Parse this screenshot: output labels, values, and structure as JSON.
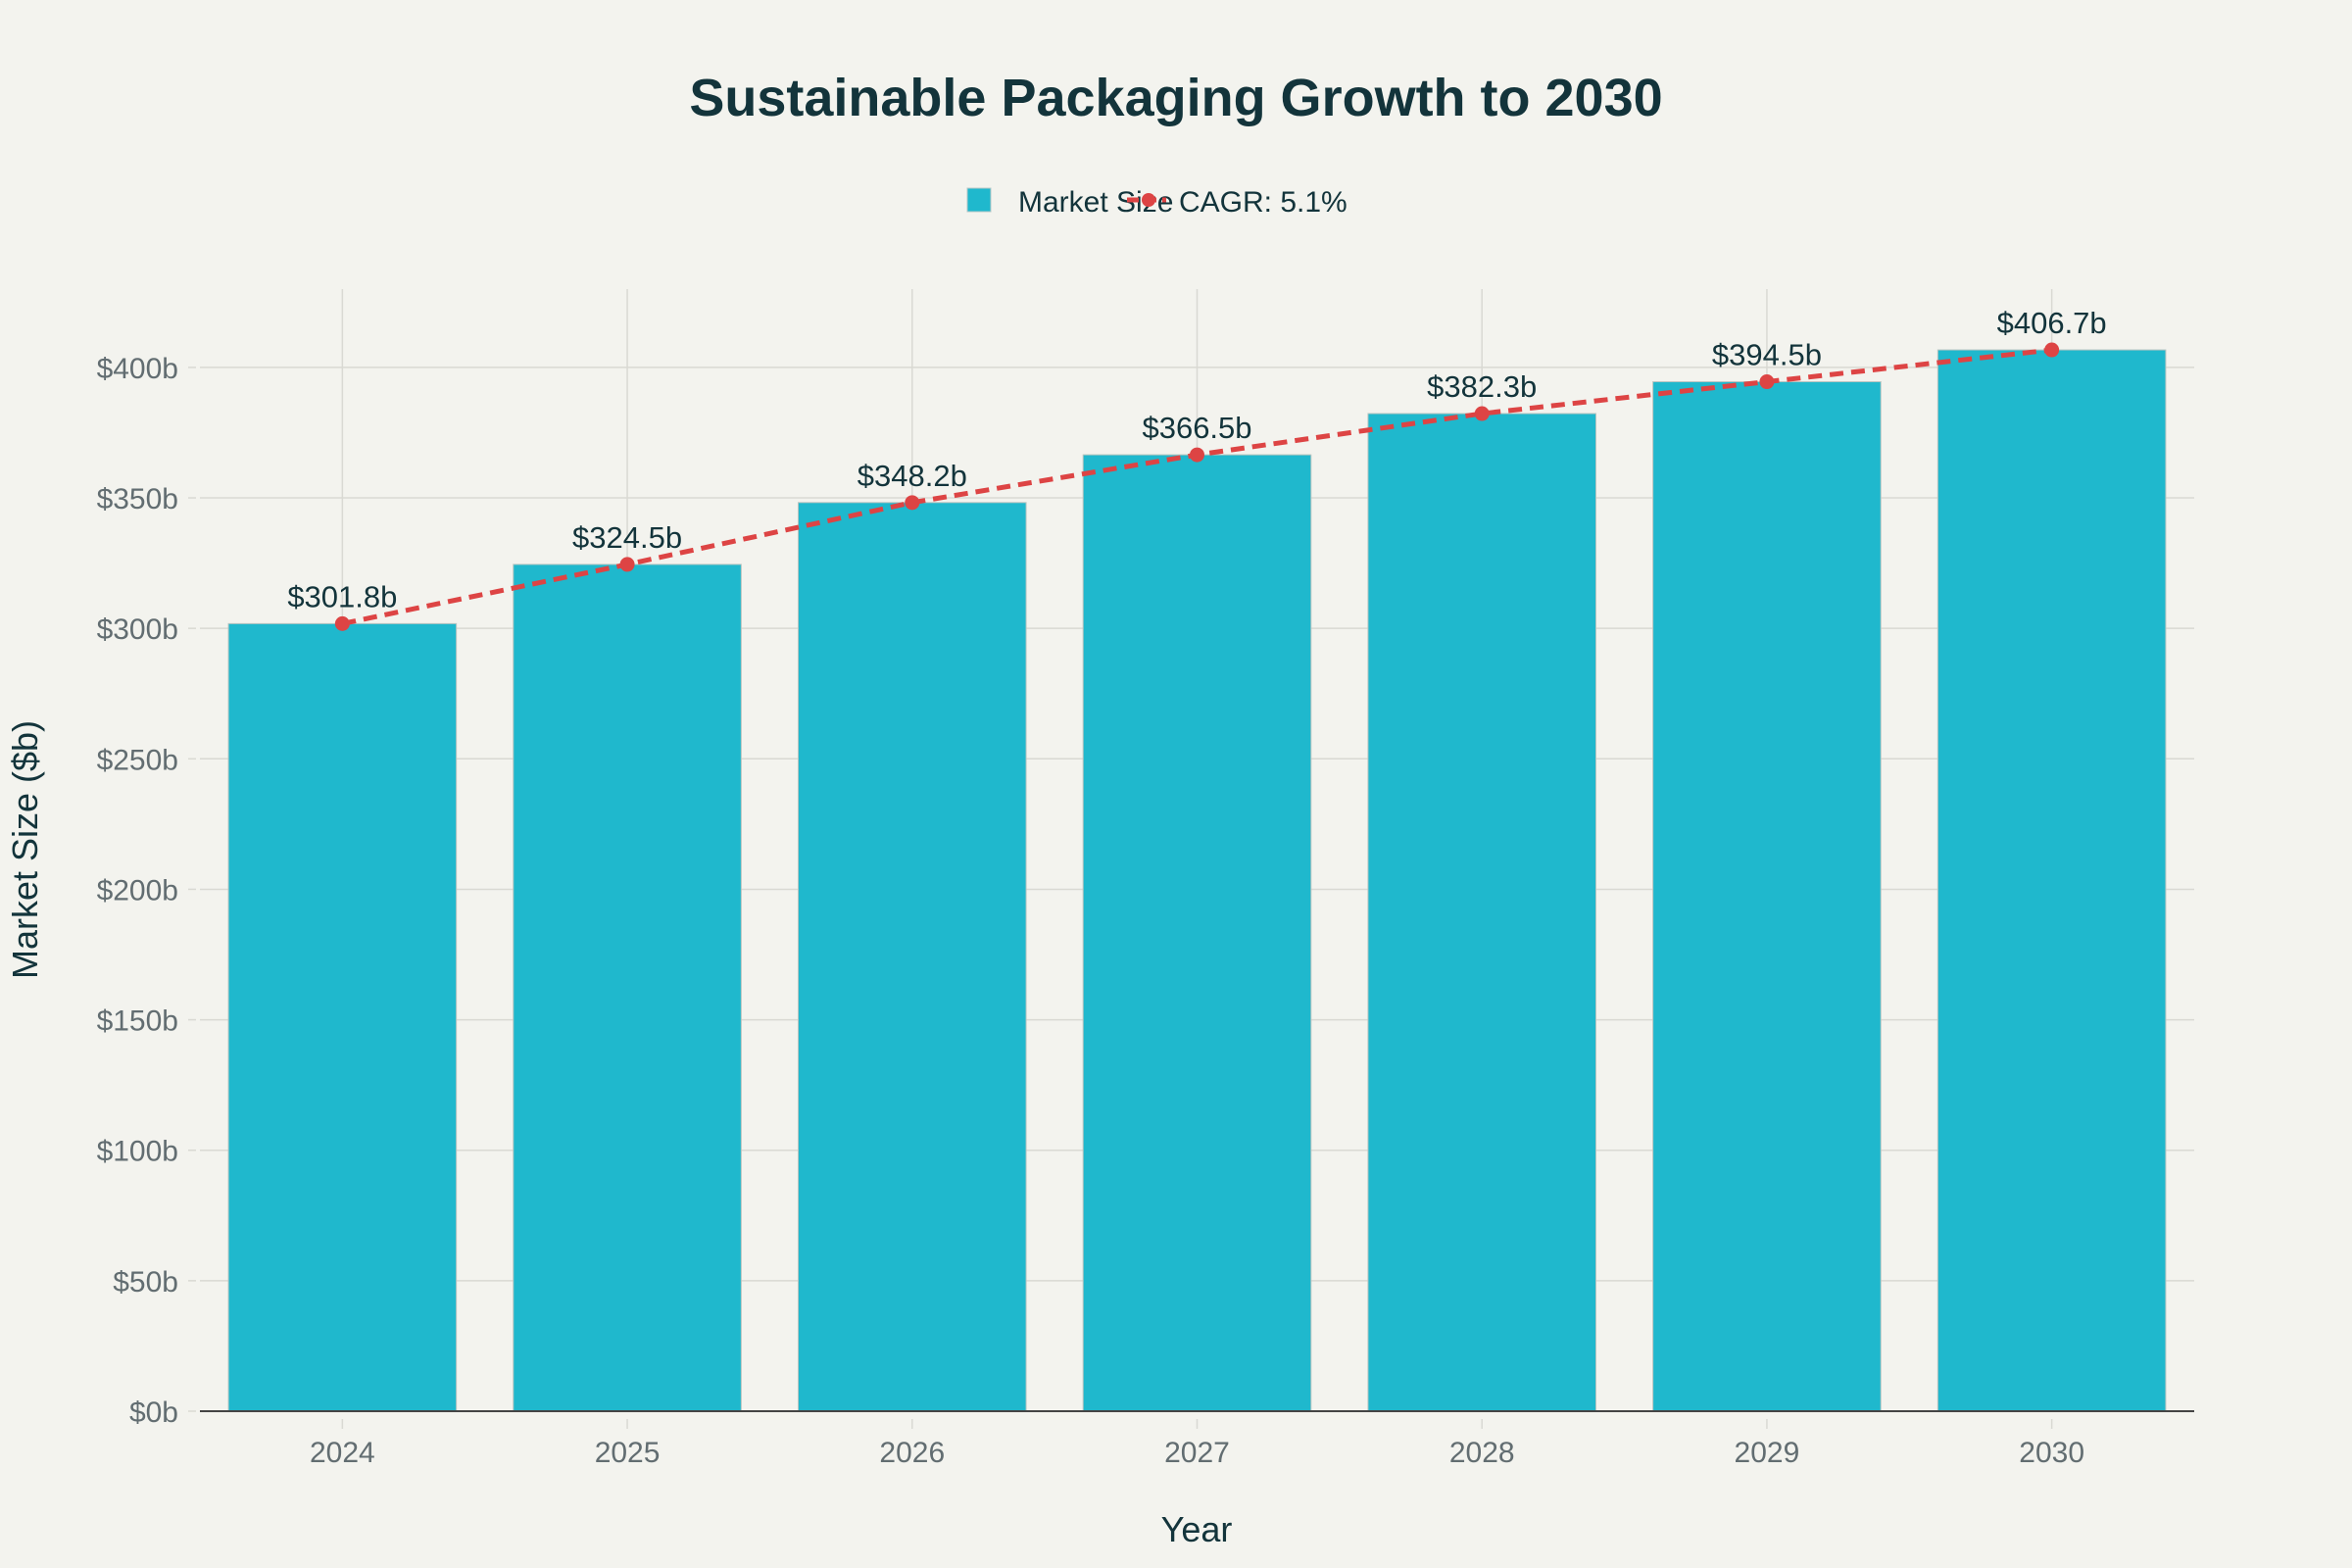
{
  "chart_data": {
    "type": "bar",
    "title": "Sustainable Packaging Growth to 2030",
    "xlabel": "Year",
    "ylabel": "Market Size ($b)",
    "categories": [
      "2024",
      "2025",
      "2026",
      "2027",
      "2028",
      "2029",
      "2030"
    ],
    "series": [
      {
        "name": "Market Size",
        "type": "bar",
        "color": "#1fb8cd",
        "values": [
          301.8,
          324.5,
          348.2,
          366.5,
          382.3,
          394.5,
          406.7
        ],
        "labels": [
          "$301.8b",
          "$324.5b",
          "$348.2b",
          "$366.5b",
          "$382.3b",
          "$394.5b",
          "$406.7b"
        ]
      },
      {
        "name": "CAGR: 5.1%",
        "type": "line",
        "style": "dashed",
        "markers": true,
        "color": "#dd4444",
        "values": [
          301.8,
          324.5,
          348.2,
          366.5,
          382.3,
          394.5,
          406.7
        ]
      }
    ],
    "ylim": [
      0,
      430
    ],
    "yticks": [
      0,
      50,
      100,
      150,
      200,
      250,
      300,
      350,
      400
    ],
    "ytick_labels": [
      "$0b",
      "$50b",
      "$100b",
      "$150b",
      "$200b",
      "$250b",
      "$300b",
      "$350b",
      "$400b"
    ],
    "grid": true,
    "legend_position": "top-center",
    "background": "#f3f3ee"
  }
}
